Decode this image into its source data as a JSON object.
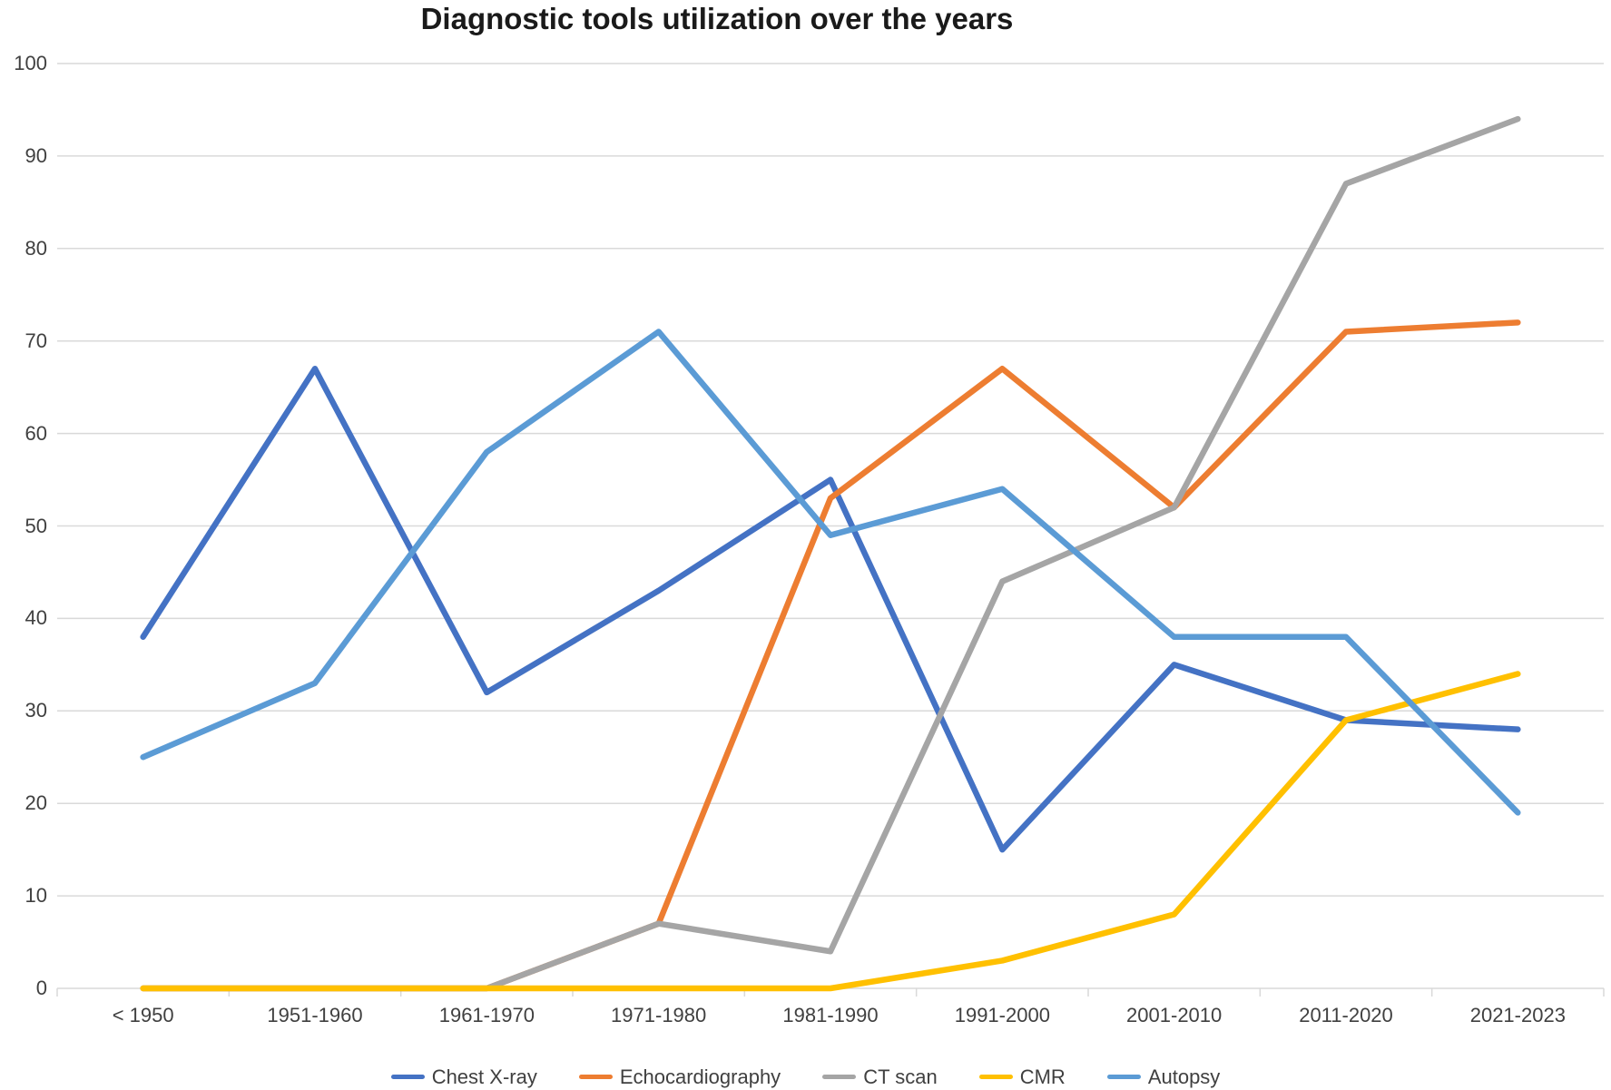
{
  "chart_data": {
    "type": "line",
    "title": "Diagnostic tools utilization over the years",
    "categories": [
      "< 1950",
      "1951-1960",
      "1961-1970",
      "1971-1980",
      "1981-1990",
      "1991-2000",
      "2001-2010",
      "2011-2020",
      "2021-2023"
    ],
    "series": [
      {
        "name": "Chest X-ray",
        "color": "#4472C4",
        "values": [
          38,
          67,
          32,
          43,
          55,
          15,
          35,
          29,
          28
        ]
      },
      {
        "name": "Echocardiography",
        "color": "#ED7D31",
        "values": [
          0,
          0,
          0,
          7,
          53,
          67,
          52,
          71,
          72
        ]
      },
      {
        "name": "CT scan",
        "color": "#A5A5A5",
        "values": [
          0,
          0,
          0,
          7,
          4,
          44,
          52,
          87,
          94
        ]
      },
      {
        "name": "CMR",
        "color": "#FFC000",
        "values": [
          0,
          0,
          0,
          0,
          0,
          3,
          8,
          29,
          34
        ]
      },
      {
        "name": "Autopsy",
        "color": "#5B9BD5",
        "values": [
          25,
          33,
          58,
          71,
          49,
          54,
          38,
          38,
          19
        ]
      }
    ],
    "y_axis": {
      "min": 0,
      "max": 100,
      "step": 10,
      "ticks": [
        0,
        10,
        20,
        30,
        40,
        50,
        60,
        70,
        80,
        90,
        100
      ]
    },
    "xlabel": "",
    "ylabel": "",
    "grid": true,
    "legend_position": "bottom",
    "gridline_color": "#D9D9D9",
    "axis_color": "#D9D9D9"
  }
}
